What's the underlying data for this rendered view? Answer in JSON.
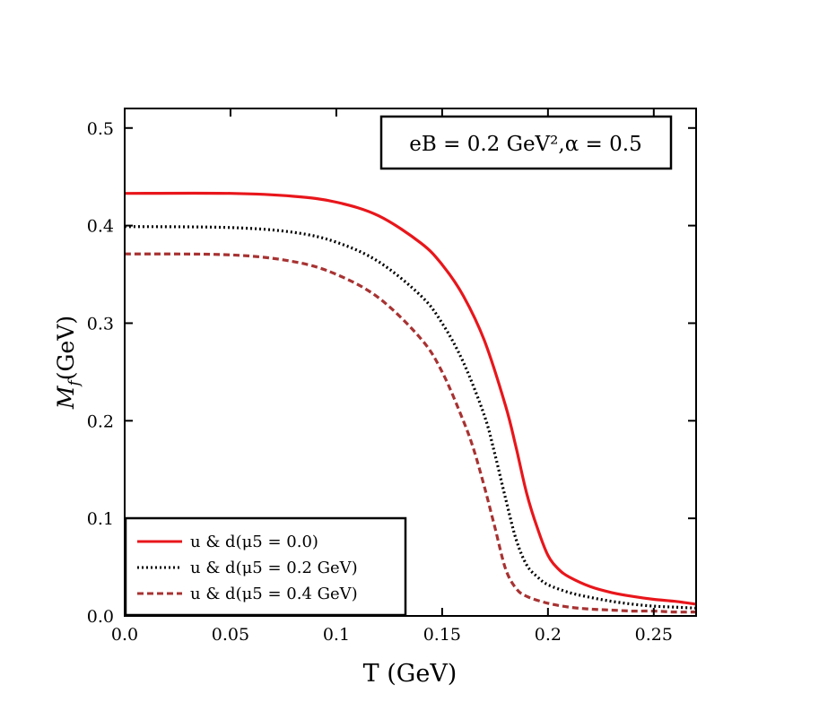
{
  "chart_data": {
    "type": "line",
    "xlabel": "T (GeV)",
    "ylabel": "M_f(GeV)",
    "ylabel_main": "M",
    "ylabel_sub": "f",
    "ylabel_tail": "(GeV)",
    "xlim": [
      0.0,
      0.27
    ],
    "ylim": [
      0.0,
      0.52
    ],
    "xticks": [
      0.0,
      0.05,
      0.1,
      0.15,
      0.2,
      0.25
    ],
    "xtick_labels": [
      "0.0",
      "0.05",
      "0.1",
      "0.15",
      "0.2",
      "0.25"
    ],
    "yticks": [
      0.0,
      0.1,
      0.2,
      0.3,
      0.4,
      0.5
    ],
    "ytick_labels": [
      "0.0",
      "0.1",
      "0.2",
      "0.3",
      "0.4",
      "0.5"
    ],
    "grid": false,
    "legend_position": "bottom-left",
    "annotation": "eB = 0.2 GeV²,α = 0.5",
    "series": [
      {
        "name": "u & d(μ5 = 0.0)",
        "color": "#e8161b",
        "style": "solid",
        "x": [
          0.0,
          0.05,
          0.08,
          0.1,
          0.12,
          0.14,
          0.15,
          0.16,
          0.17,
          0.18,
          0.185,
          0.19,
          0.195,
          0.2,
          0.205,
          0.21,
          0.22,
          0.23,
          0.24,
          0.25,
          0.26,
          0.27
        ],
        "y": [
          0.433,
          0.433,
          0.43,
          0.424,
          0.41,
          0.382,
          0.36,
          0.328,
          0.282,
          0.215,
          0.172,
          0.125,
          0.09,
          0.062,
          0.048,
          0.04,
          0.03,
          0.024,
          0.02,
          0.017,
          0.015,
          0.012
        ]
      },
      {
        "name": "u & d(μ5 = 0.2 GeV)",
        "color": "#000000",
        "style": "dotted",
        "x": [
          0.0,
          0.05,
          0.08,
          0.1,
          0.12,
          0.14,
          0.15,
          0.16,
          0.17,
          0.175,
          0.18,
          0.185,
          0.19,
          0.195,
          0.2,
          0.21,
          0.22,
          0.23,
          0.24,
          0.25,
          0.26,
          0.27
        ],
        "y": [
          0.399,
          0.398,
          0.393,
          0.383,
          0.363,
          0.328,
          0.3,
          0.26,
          0.205,
          0.165,
          0.12,
          0.078,
          0.052,
          0.04,
          0.032,
          0.024,
          0.019,
          0.015,
          0.012,
          0.01,
          0.009,
          0.008
        ]
      },
      {
        "name": "u & d(μ5 = 0.4 GeV)",
        "color": "#a83232",
        "style": "dashed",
        "x": [
          0.0,
          0.05,
          0.08,
          0.1,
          0.12,
          0.14,
          0.15,
          0.16,
          0.165,
          0.17,
          0.175,
          0.18,
          0.185,
          0.19,
          0.2,
          0.21,
          0.22,
          0.23,
          0.24,
          0.25,
          0.26,
          0.27
        ],
        "y": [
          0.371,
          0.37,
          0.363,
          0.35,
          0.326,
          0.284,
          0.25,
          0.2,
          0.17,
          0.132,
          0.09,
          0.048,
          0.028,
          0.02,
          0.013,
          0.009,
          0.007,
          0.006,
          0.005,
          0.005,
          0.004,
          0.004
        ]
      }
    ]
  }
}
